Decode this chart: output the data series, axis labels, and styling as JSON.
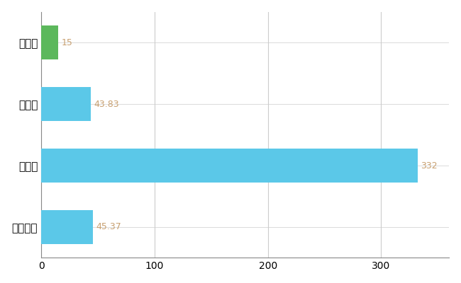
{
  "categories": [
    "新見市",
    "県平均",
    "県最大",
    "全国平均"
  ],
  "values": [
    15,
    43.83,
    332,
    45.37
  ],
  "bar_colors": [
    "#5cb85c",
    "#5bc8e8",
    "#5bc8e8",
    "#5bc8e8"
  ],
  "value_labels": [
    "15",
    "43.83",
    "332",
    "45.37"
  ],
  "value_label_color": "#c8a070",
  "xlim": [
    0,
    360
  ],
  "xticks": [
    0,
    100,
    200,
    300
  ],
  "background_color": "#ffffff",
  "grid_color": "#cccccc",
  "figsize": [
    6.5,
    4.0
  ],
  "dpi": 100,
  "bar_height": 0.55
}
